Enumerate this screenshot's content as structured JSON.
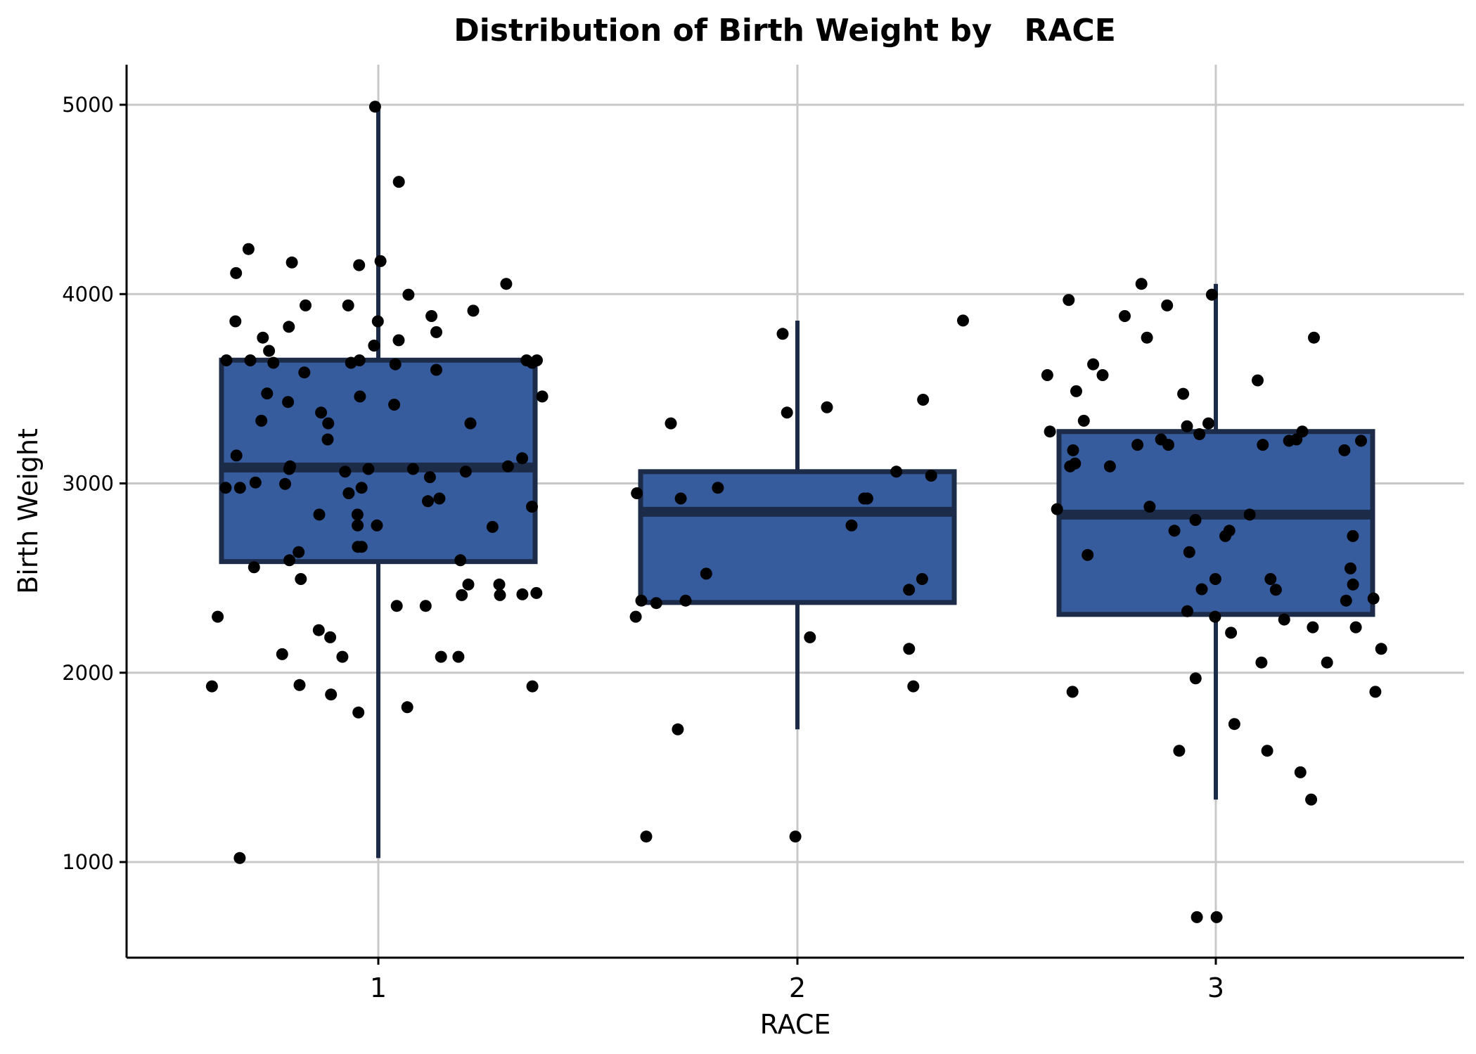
{
  "chart_data": {
    "type": "box",
    "title": "Distribution of Birth Weight by   RACE",
    "xlabel": "RACE",
    "ylabel": "Birth Weight",
    "categories": [
      "1",
      "2",
      "3"
    ],
    "yticks": [
      1000,
      2000,
      3000,
      4000,
      5000
    ],
    "ylim": [
      500,
      5200
    ],
    "grid": true,
    "colors": {
      "box_fill": "#365c9e",
      "box_stroke": "#1b2b48",
      "point": "#000000"
    },
    "boxes": [
      {
        "category": "1",
        "whisker_low": 1021,
        "q1": 2587,
        "median": 3084,
        "q3": 3651,
        "whisker_high": 4990
      },
      {
        "category": "2",
        "whisker_low": 1701,
        "q1": 2371,
        "median": 2850,
        "q3": 3062,
        "whisker_high": 3860
      },
      {
        "category": "3",
        "whisker_low": 1330,
        "q1": 2308,
        "median": 2835,
        "q3": 3274,
        "whisker_high": 4054
      }
    ],
    "points": [
      {
        "category": "1",
        "y": [
          4990,
          4593,
          4238,
          4167,
          4153,
          4174,
          4111,
          4054,
          3997,
          3940,
          3940,
          3912,
          3884,
          3856,
          3856,
          3827,
          3799,
          3770,
          3756,
          3728,
          3700,
          3650,
          3650,
          3650,
          3650,
          3650,
          3637,
          3637,
          3637,
          3629,
          3600,
          3586,
          3475,
          3459,
          3459,
          3430,
          3416,
          3374,
          3331,
          3317,
          3317,
          3232,
          3147,
          3133,
          3090,
          3090,
          3076,
          3076,
          3076,
          3062,
          3062,
          3033,
          3005,
          2997,
          2977,
          2977,
          2977,
          2948,
          2920,
          2906,
          2877,
          2835,
          2835,
          2778,
          2778,
          2770,
          2665,
          2665,
          2637,
          2594,
          2594,
          2557,
          2495,
          2466,
          2466,
          2421,
          2414,
          2410,
          2410,
          2353,
          2353,
          2296,
          2225,
          2187,
          2098,
          2084,
          2084,
          2084,
          1935,
          1928,
          1928,
          1885,
          1818,
          1790,
          1021
        ]
      },
      {
        "category": "2",
        "y": [
          3860,
          3790,
          3442,
          3402,
          3374,
          3317,
          3062,
          3041,
          2977,
          2948,
          2920,
          2920,
          2920,
          2778,
          2495,
          2523,
          2438,
          2381,
          2381,
          2368,
          2296,
          2187,
          2126,
          1928,
          1701,
          1135,
          1135
        ]
      },
      {
        "category": "3",
        "y": [
          4054,
          3997,
          3969,
          3940,
          3884,
          3770,
          3770,
          3629,
          3572,
          3572,
          3544,
          3487,
          3473,
          3331,
          3317,
          3302,
          3274,
          3274,
          3260,
          3232,
          3232,
          3225,
          3225,
          3204,
          3204,
          3204,
          3175,
          3175,
          3105,
          3090,
          3090,
          2877,
          2864,
          2835,
          2807,
          2750,
          2750,
          2722,
          2722,
          2637,
          2622,
          2551,
          2495,
          2495,
          2466,
          2438,
          2441,
          2392,
          2381,
          2325,
          2296,
          2281,
          2240,
          2240,
          2211,
          2126,
          2054,
          2054,
          1970,
          1899,
          1899,
          1729,
          1588,
          1588,
          1474,
          1330,
          709,
          709
        ]
      }
    ]
  }
}
